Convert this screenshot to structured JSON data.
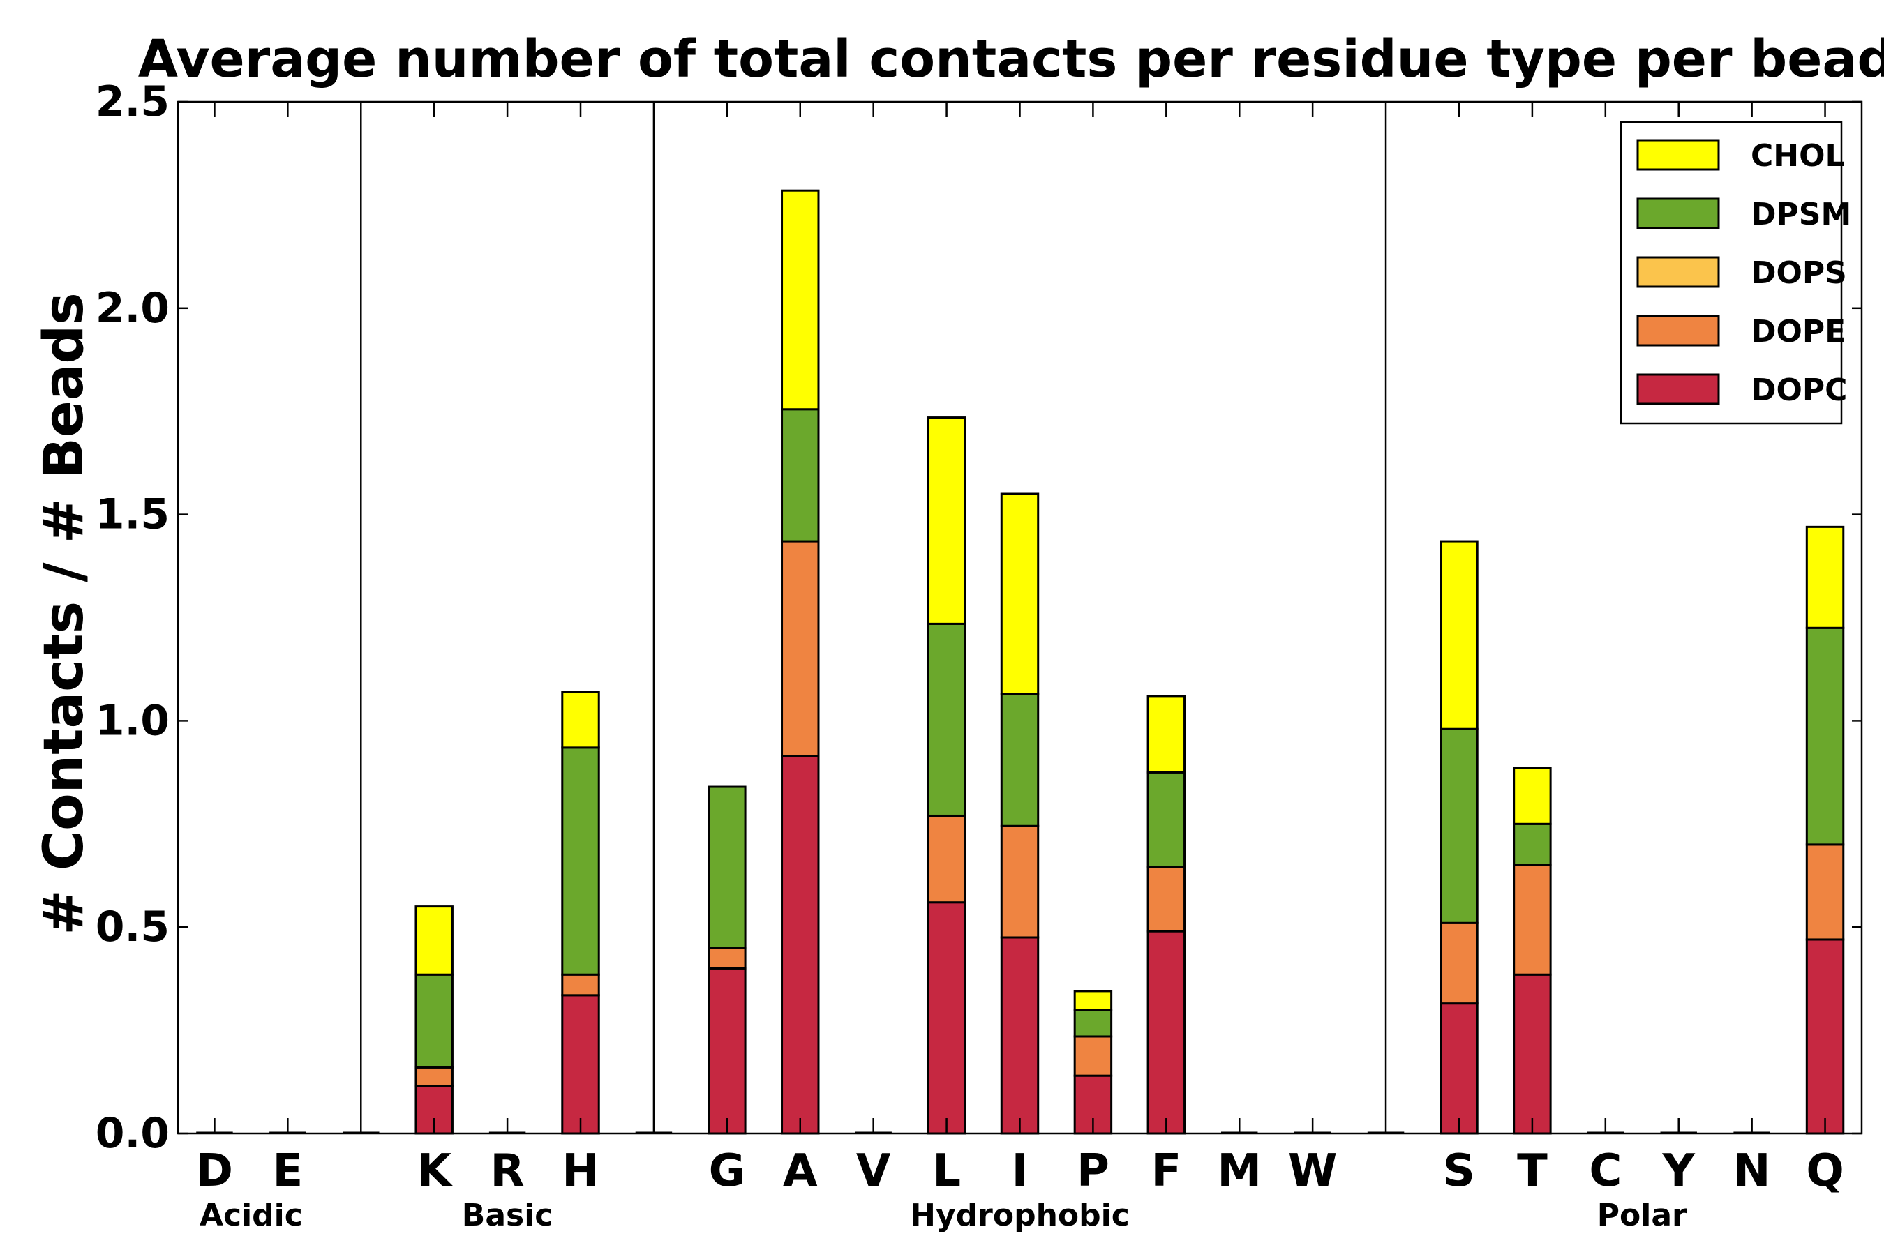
{
  "chart_data": {
    "type": "bar",
    "stacked": true,
    "title": "Average number of total contacts per residue type per bead",
    "xlabel": "",
    "ylabel": "# Contacts / # Beads",
    "ylim": [
      0,
      2.5
    ],
    "yticks": [
      "0.0",
      "0.5",
      "1.0",
      "1.5",
      "2.0",
      "2.5"
    ],
    "grid": false,
    "legend_position": "top-right",
    "slot_count": 23,
    "categories": [
      "D",
      "E",
      "K",
      "R",
      "H",
      "G",
      "A",
      "V",
      "L",
      "I",
      "P",
      "F",
      "M",
      "W",
      "S",
      "T",
      "C",
      "Y",
      "N",
      "Q"
    ],
    "category_slots": [
      0,
      1,
      3,
      4,
      5,
      7,
      8,
      9,
      10,
      11,
      12,
      13,
      14,
      15,
      17,
      18,
      19,
      20,
      21,
      22
    ],
    "separator_slots": [
      2,
      6,
      16
    ],
    "groups": [
      {
        "label": "Acidic",
        "slots": [
          0,
          1
        ]
      },
      {
        "label": "Basic",
        "slots": [
          3,
          5
        ]
      },
      {
        "label": "Hydrophobic",
        "slots": [
          7,
          15
        ]
      },
      {
        "label": "Polar",
        "slots": [
          17,
          22
        ]
      }
    ],
    "series": [
      {
        "name": "DOPC",
        "color": "#c62841",
        "values": [
          0,
          0,
          0.115,
          0,
          0.335,
          0.4,
          0.915,
          0,
          0.56,
          0.475,
          0.14,
          0.49,
          0,
          0,
          0.315,
          0.385,
          0,
          0,
          0,
          0.47
        ]
      },
      {
        "name": "DOPE",
        "color": "#ef8441",
        "values": [
          0,
          0,
          0.045,
          0,
          0.05,
          0.05,
          0.52,
          0,
          0.21,
          0.27,
          0.095,
          0.155,
          0,
          0,
          0.195,
          0.265,
          0,
          0,
          0,
          0.23
        ]
      },
      {
        "name": "DOPS",
        "color": "#fbc44c",
        "values": [
          0,
          0,
          0,
          0,
          0,
          0,
          0,
          0,
          0,
          0,
          0,
          0,
          0,
          0,
          0,
          0,
          0,
          0,
          0,
          0
        ]
      },
      {
        "name": "DPSM",
        "color": "#6ba82c",
        "values": [
          0,
          0,
          0.225,
          0,
          0.55,
          0.39,
          0.32,
          0,
          0.465,
          0.32,
          0.065,
          0.23,
          0,
          0,
          0.47,
          0.1,
          0,
          0,
          0,
          0.525
        ]
      },
      {
        "name": "CHOL",
        "color": "#ffff00",
        "values": [
          0,
          0,
          0.165,
          0,
          0.135,
          0,
          0.53,
          0,
          0.5,
          0.485,
          0.045,
          0.185,
          0,
          0,
          0.455,
          0.135,
          0,
          0,
          0,
          0.245
        ]
      }
    ]
  }
}
